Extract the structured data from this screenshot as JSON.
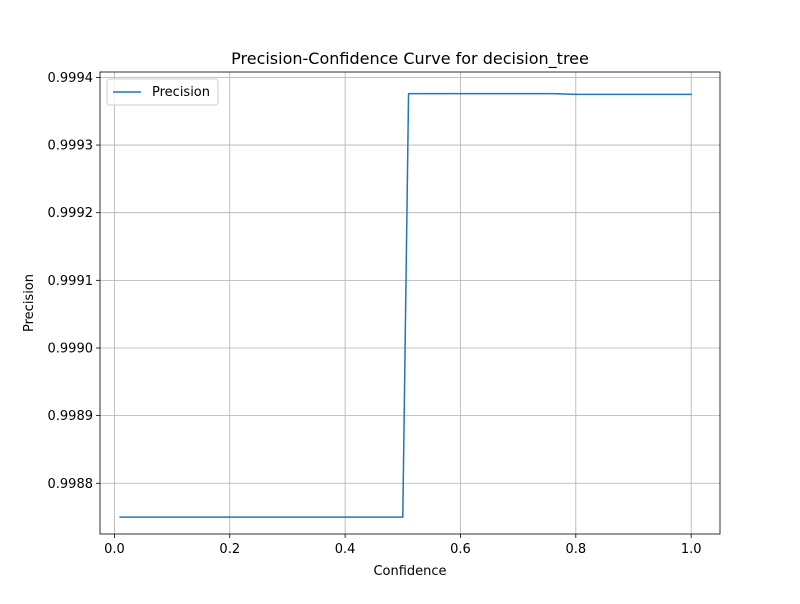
{
  "chart_data": {
    "type": "line",
    "title": "Precision-Confidence Curve for decision_tree",
    "xlabel": "Confidence",
    "ylabel": "Precision",
    "xlim": [
      -0.025,
      1.05
    ],
    "ylim": [
      0.998725,
      0.999408
    ],
    "xticks": [
      0.0,
      0.2,
      0.4,
      0.6,
      0.8,
      1.0
    ],
    "xtick_labels": [
      "0.0",
      "0.2",
      "0.4",
      "0.6",
      "0.8",
      "1.0"
    ],
    "yticks": [
      0.9988,
      0.9989,
      0.999,
      0.9991,
      0.9992,
      0.9993,
      0.9994
    ],
    "ytick_labels": [
      "0.9988",
      "0.9989",
      "0.9990",
      "0.9991",
      "0.9992",
      "0.9993",
      "0.9994"
    ],
    "grid": true,
    "legend_position": "upper-left",
    "series": [
      {
        "name": "Precision",
        "color": "#1f77b4",
        "x": [
          0.01,
          0.1,
          0.2,
          0.3,
          0.4,
          0.5,
          0.51,
          0.6,
          0.7,
          0.76,
          0.8,
          0.9,
          1.0
        ],
        "y": [
          0.99875,
          0.99875,
          0.99875,
          0.99875,
          0.99875,
          0.99875,
          0.999376,
          0.999376,
          0.999376,
          0.999376,
          0.999375,
          0.999375,
          0.999375
        ]
      }
    ]
  }
}
